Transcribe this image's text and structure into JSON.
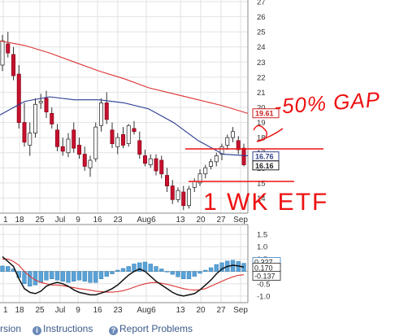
{
  "chart_data": [
    {
      "type": "candlestick",
      "title": "",
      "xlabel": "",
      "ylabel": "",
      "ylim": [
        13,
        27
      ],
      "grid": true,
      "x_tick_labels": [
        "1",
        "18",
        "25",
        "Jul",
        "9",
        "16",
        "23",
        "Aug6",
        "13",
        "20",
        "27",
        "Sep"
      ],
      "y_tick_labels": [
        "27",
        "26",
        "25",
        "24",
        "23",
        "22",
        "21",
        "20",
        "19",
        "18",
        "17",
        "16",
        "15",
        "14"
      ],
      "price_flags": [
        {
          "value": 19.61,
          "label": "19.61",
          "color": "#cc2222"
        },
        {
          "value": 16.76,
          "label": "16.76",
          "color": "#334488"
        },
        {
          "value": 16.16,
          "label": "16.16",
          "color": "#222222"
        }
      ],
      "moving_averages": [
        {
          "color": "#dd3333",
          "x": [
            0,
            0.1,
            0.2,
            0.3,
            0.4,
            0.5,
            0.6,
            0.7,
            0.8,
            0.9,
            1
          ],
          "y": [
            24.4,
            24.1,
            23.6,
            23.0,
            22.4,
            21.9,
            21.3,
            20.9,
            20.5,
            20.1,
            19.6
          ]
        },
        {
          "color": "#2a3a90",
          "x": [
            0,
            0.1,
            0.2,
            0.3,
            0.4,
            0.5,
            0.6,
            0.7,
            0.8,
            0.9,
            1
          ],
          "y": [
            19.5,
            20.4,
            20.7,
            20.5,
            20.5,
            20.3,
            19.9,
            19.0,
            17.8,
            16.9,
            16.8
          ]
        }
      ],
      "candles": [
        {
          "o": 22.8,
          "h": 24.8,
          "l": 22.4,
          "c": 24.4
        },
        {
          "o": 24.2,
          "h": 25.0,
          "l": 23.3,
          "c": 23.6
        },
        {
          "o": 23.5,
          "h": 24.0,
          "l": 21.8,
          "c": 22.1
        },
        {
          "o": 22.2,
          "h": 22.8,
          "l": 18.6,
          "c": 19.0
        },
        {
          "o": 19.0,
          "h": 20.3,
          "l": 17.4,
          "c": 17.7
        },
        {
          "o": 17.5,
          "h": 19.0,
          "l": 16.8,
          "c": 18.3
        },
        {
          "o": 18.3,
          "h": 20.6,
          "l": 18.0,
          "c": 20.2
        },
        {
          "o": 20.3,
          "h": 20.9,
          "l": 19.9,
          "c": 20.4
        },
        {
          "o": 20.6,
          "h": 21.1,
          "l": 19.3,
          "c": 19.7
        },
        {
          "o": 19.6,
          "h": 20.0,
          "l": 18.6,
          "c": 18.9
        },
        {
          "o": 18.5,
          "h": 18.9,
          "l": 17.1,
          "c": 17.4
        },
        {
          "o": 17.4,
          "h": 18.0,
          "l": 16.8,
          "c": 17.1
        },
        {
          "o": 17.0,
          "h": 18.3,
          "l": 16.7,
          "c": 17.9
        },
        {
          "o": 18.5,
          "h": 19.0,
          "l": 17.0,
          "c": 17.3
        },
        {
          "o": 17.5,
          "h": 18.0,
          "l": 16.6,
          "c": 16.9
        },
        {
          "o": 16.9,
          "h": 17.4,
          "l": 15.8,
          "c": 16.1
        },
        {
          "o": 16.0,
          "h": 16.8,
          "l": 15.4,
          "c": 16.5
        },
        {
          "o": 16.6,
          "h": 19.0,
          "l": 16.4,
          "c": 18.7
        },
        {
          "o": 18.8,
          "h": 20.6,
          "l": 18.4,
          "c": 20.3
        },
        {
          "o": 20.3,
          "h": 21.0,
          "l": 18.9,
          "c": 19.2
        },
        {
          "o": 18.5,
          "h": 19.0,
          "l": 17.3,
          "c": 17.6
        },
        {
          "o": 17.4,
          "h": 18.3,
          "l": 16.9,
          "c": 18.0
        },
        {
          "o": 18.2,
          "h": 18.7,
          "l": 17.3,
          "c": 17.5
        },
        {
          "o": 17.6,
          "h": 18.9,
          "l": 17.4,
          "c": 18.8
        },
        {
          "o": 18.6,
          "h": 19.1,
          "l": 18.2,
          "c": 18.4
        },
        {
          "o": 17.8,
          "h": 18.4,
          "l": 16.6,
          "c": 16.9
        },
        {
          "o": 16.8,
          "h": 17.2,
          "l": 16.1,
          "c": 16.3
        },
        {
          "o": 16.2,
          "h": 16.9,
          "l": 16.0,
          "c": 16.6
        },
        {
          "o": 16.6,
          "h": 16.9,
          "l": 15.5,
          "c": 15.8
        },
        {
          "o": 16.5,
          "h": 16.8,
          "l": 15.3,
          "c": 15.6
        },
        {
          "o": 15.5,
          "h": 16.0,
          "l": 14.4,
          "c": 14.8
        },
        {
          "o": 14.8,
          "h": 15.2,
          "l": 13.6,
          "c": 13.9
        },
        {
          "o": 13.9,
          "h": 14.7,
          "l": 13.7,
          "c": 14.5
        },
        {
          "o": 14.4,
          "h": 14.8,
          "l": 13.2,
          "c": 13.5
        },
        {
          "o": 13.5,
          "h": 14.8,
          "l": 13.3,
          "c": 14.6
        },
        {
          "o": 14.7,
          "h": 15.3,
          "l": 14.4,
          "c": 15.1
        },
        {
          "o": 15.0,
          "h": 15.9,
          "l": 14.8,
          "c": 15.6
        },
        {
          "o": 15.6,
          "h": 16.2,
          "l": 15.3,
          "c": 16.0
        },
        {
          "o": 16.1,
          "h": 16.6,
          "l": 15.9,
          "c": 16.4
        },
        {
          "o": 16.4,
          "h": 17.0,
          "l": 16.1,
          "c": 16.8
        },
        {
          "o": 16.9,
          "h": 17.6,
          "l": 16.5,
          "c": 17.4
        },
        {
          "o": 17.5,
          "h": 18.2,
          "l": 17.2,
          "c": 18.0
        },
        {
          "o": 18.0,
          "h": 18.7,
          "l": 17.7,
          "c": 18.4
        },
        {
          "o": 17.8,
          "h": 18.1,
          "l": 16.9,
          "c": 17.2
        },
        {
          "o": 17.3,
          "h": 17.6,
          "l": 16.1,
          "c": 16.2
        }
      ]
    },
    {
      "type": "macd",
      "ylim": [
        -1.2,
        1.7
      ],
      "y_tick_labels": [
        "1.5",
        "1.0",
        "0.5",
        "-0.5",
        "-1.0"
      ],
      "y_tick_values": [
        1.5,
        1.0,
        0.5,
        -0.5,
        -1.0
      ],
      "x_tick_labels": [
        "1",
        "18",
        "25",
        "Jul",
        "9",
        "16",
        "23",
        "Aug6",
        "13",
        "20",
        "27",
        "Sep"
      ],
      "value_flags": [
        {
          "value": 0.33,
          "label": "0.327",
          "color": "#3a7fbf"
        },
        {
          "value": 0.17,
          "label": "0.170",
          "color": "#222222"
        },
        {
          "value": -0.137,
          "label": "-0.137",
          "color": "#222222"
        }
      ],
      "histogram": [
        0.22,
        0.2,
        0.1,
        -0.25,
        -0.5,
        -0.6,
        -0.55,
        -0.45,
        -0.35,
        -0.3,
        -0.35,
        -0.4,
        -0.45,
        -0.4,
        -0.35,
        -0.4,
        -0.45,
        -0.45,
        -0.3,
        -0.2,
        -0.1,
        0.05,
        0.12,
        0.2,
        0.3,
        0.35,
        0.38,
        0.3,
        0.2,
        0.1,
        -0.02,
        -0.12,
        -0.22,
        -0.3,
        -0.3,
        -0.2,
        -0.08,
        0.05,
        0.15,
        0.28,
        0.35,
        0.42,
        0.45,
        0.4,
        0.33
      ],
      "macd_line": {
        "color": "#111111",
        "values": [
          0.6,
          0.4,
          0.2,
          -0.3,
          -0.7,
          -0.85,
          -0.9,
          -0.8,
          -0.6,
          -0.5,
          -0.45,
          -0.5,
          -0.6,
          -0.75,
          -0.85,
          -0.9,
          -0.95,
          -0.95,
          -0.88,
          -0.8,
          -0.7,
          -0.55,
          -0.35,
          -0.15,
          0.0,
          0.1,
          0.0,
          -0.2,
          -0.4,
          -0.55,
          -0.7,
          -0.85,
          -0.95,
          -1.0,
          -0.95,
          -0.9,
          -0.75,
          -0.55,
          -0.35,
          -0.1,
          0.1,
          0.2,
          0.25,
          0.22,
          0.17
        ]
      },
      "signal_line": {
        "color": "#dd3333",
        "values": [
          0.5,
          0.5,
          0.4,
          0.25,
          0.0,
          -0.2,
          -0.35,
          -0.45,
          -0.5,
          -0.55,
          -0.55,
          -0.58,
          -0.62,
          -0.66,
          -0.7,
          -0.73,
          -0.76,
          -0.8,
          -0.82,
          -0.84,
          -0.84,
          -0.82,
          -0.78,
          -0.72,
          -0.64,
          -0.56,
          -0.5,
          -0.46,
          -0.45,
          -0.48,
          -0.52,
          -0.58,
          -0.64,
          -0.7,
          -0.74,
          -0.76,
          -0.74,
          -0.7,
          -0.6,
          -0.5,
          -0.4,
          -0.3,
          -0.22,
          -0.16,
          -0.137
        ]
      }
    }
  ],
  "annotations": {
    "text_top": "-50% GAP",
    "text_bottom": "1 WK ETF",
    "color": "#ee1111"
  },
  "toolbar": {
    "partial_label": "rsion",
    "instructions_label": "Instructions",
    "report_label": "Report Problems"
  }
}
